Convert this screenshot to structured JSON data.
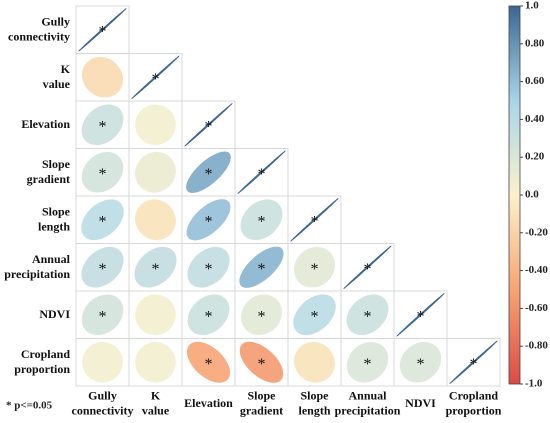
{
  "chart_data": {
    "type": "correlation",
    "variables": [
      "Gully connectivity",
      "K value",
      "Elevation",
      "Slope gradient",
      "Slope length",
      "Annual precipitation",
      "NDVI",
      "Cropland proportion"
    ],
    "values": [
      [
        1
      ],
      [
        -0.15,
        1
      ],
      [
        0.3,
        0.05,
        1
      ],
      [
        0.25,
        0.1,
        0.7,
        1
      ],
      [
        0.4,
        -0.1,
        0.6,
        0.3,
        1
      ],
      [
        0.35,
        0.35,
        0.35,
        0.65,
        0.15,
        1
      ],
      [
        0.25,
        0.05,
        0.3,
        0.15,
        0.4,
        0.3,
        1
      ],
      [
        0.05,
        0.05,
        -0.5,
        -0.55,
        -0.1,
        0.2,
        0.2,
        1
      ]
    ],
    "significant": [
      [
        true
      ],
      [
        false,
        true
      ],
      [
        true,
        false,
        true
      ],
      [
        true,
        false,
        true,
        true
      ],
      [
        true,
        false,
        true,
        true,
        true
      ],
      [
        true,
        true,
        true,
        true,
        true,
        true
      ],
      [
        true,
        false,
        true,
        true,
        true,
        true,
        true
      ],
      [
        false,
        false,
        true,
        true,
        false,
        true,
        true,
        true
      ]
    ],
    "marker": "*",
    "footnote": "* p<=0.05",
    "clim": [
      -1,
      1
    ],
    "colorscale": [
      [
        -1,
        "#dc4a45"
      ],
      [
        -0.5,
        "#f7a474"
      ],
      [
        0,
        "#fbf1cc"
      ],
      [
        0.5,
        "#a9d5e9"
      ],
      [
        1,
        "#3b6791"
      ]
    ],
    "cticks": [
      {
        "value": 1,
        "label": "1.0"
      },
      {
        "value": 0.8,
        "label": "0.80"
      },
      {
        "value": 0.6,
        "label": "0.60"
      },
      {
        "value": 0.4,
        "label": "0.40"
      },
      {
        "value": 0.2,
        "label": "0.20"
      },
      {
        "value": 0,
        "label": "0.0"
      },
      {
        "value": -0.2,
        "label": "-0.20"
      },
      {
        "value": -0.4,
        "label": "-0.40"
      },
      {
        "value": -0.6,
        "label": "-0.60"
      },
      {
        "value": -0.8,
        "label": "-0.80"
      },
      {
        "value": -1,
        "label": "-1.0"
      }
    ]
  }
}
